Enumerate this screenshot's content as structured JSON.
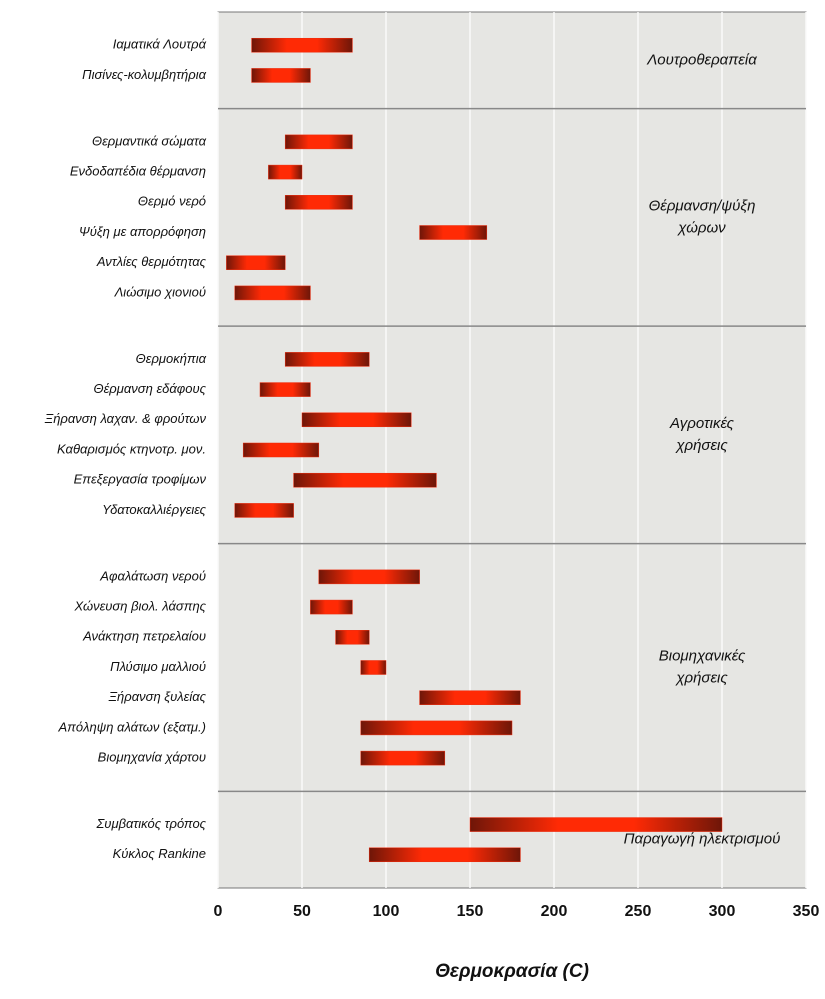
{
  "chart_data": {
    "type": "range-bar",
    "xlabel": "Θερμοκρασία (C)",
    "color": "#ee2a0c",
    "xlim": [
      0,
      350
    ],
    "xticks": [
      0,
      50,
      100,
      150,
      200,
      250,
      300,
      350
    ],
    "grid": true,
    "groups": [
      {
        "label": [
          "Λουτροθεραπεία"
        ],
        "categories": [
          "Ιαματικά Λουτρά",
          "Πισίνες-κολυμβητήρια"
        ],
        "values": [
          [
            20,
            80
          ],
          [
            20,
            55
          ]
        ]
      },
      {
        "label": [
          "Θέρμανση/ψύξη",
          "χώρων"
        ],
        "categories": [
          "Θερμαντικά σώματα",
          "Ενδοδαπέδια θέρμανση",
          "Θερμό νερό",
          "Ψύξη με απορρόφηση",
          "Αντλίες θερμότητας",
          "Λιώσιμο χιονιού"
        ],
        "values": [
          [
            40,
            80
          ],
          [
            30,
            50
          ],
          [
            40,
            80
          ],
          [
            120,
            160
          ],
          [
            5,
            40
          ],
          [
            10,
            55
          ]
        ]
      },
      {
        "label": [
          "Αγροτικές",
          "χρήσεις"
        ],
        "categories": [
          "Θερμοκήπια",
          "Θέρμανση εδάφους",
          "Ξήρανση λαχαν. & φρούτων",
          "Καθαρισμός κτηνοτρ. μον.",
          "Επεξεργασία τροφίμων",
          "Υδατοκαλλιέργειες"
        ],
        "values": [
          [
            40,
            90
          ],
          [
            25,
            55
          ],
          [
            50,
            115
          ],
          [
            15,
            60
          ],
          [
            45,
            130
          ],
          [
            10,
            45
          ]
        ]
      },
      {
        "label": [
          "Βιομηχανικές",
          "χρήσεις"
        ],
        "categories": [
          "Αφαλάτωση νερού",
          "Χώνευση βιολ. λάσπης",
          "Ανάκτηση πετρελαίου",
          "Πλύσιμο μαλλιού",
          "Ξήρανση ξυλείας",
          "Απόληψη αλάτων (εξατμ.)",
          "Βιομηχανία χάρτου"
        ],
        "values": [
          [
            60,
            120
          ],
          [
            55,
            80
          ],
          [
            70,
            90
          ],
          [
            85,
            100
          ],
          [
            120,
            180
          ],
          [
            85,
            175
          ],
          [
            85,
            135
          ]
        ]
      },
      {
        "label": [
          "Παραγωγή ηλεκτρισμού"
        ],
        "categories": [
          "Συμβατικός τρόπος",
          "Κύκλος Rankine"
        ],
        "values": [
          [
            150,
            300
          ],
          [
            90,
            180
          ]
        ]
      }
    ]
  }
}
